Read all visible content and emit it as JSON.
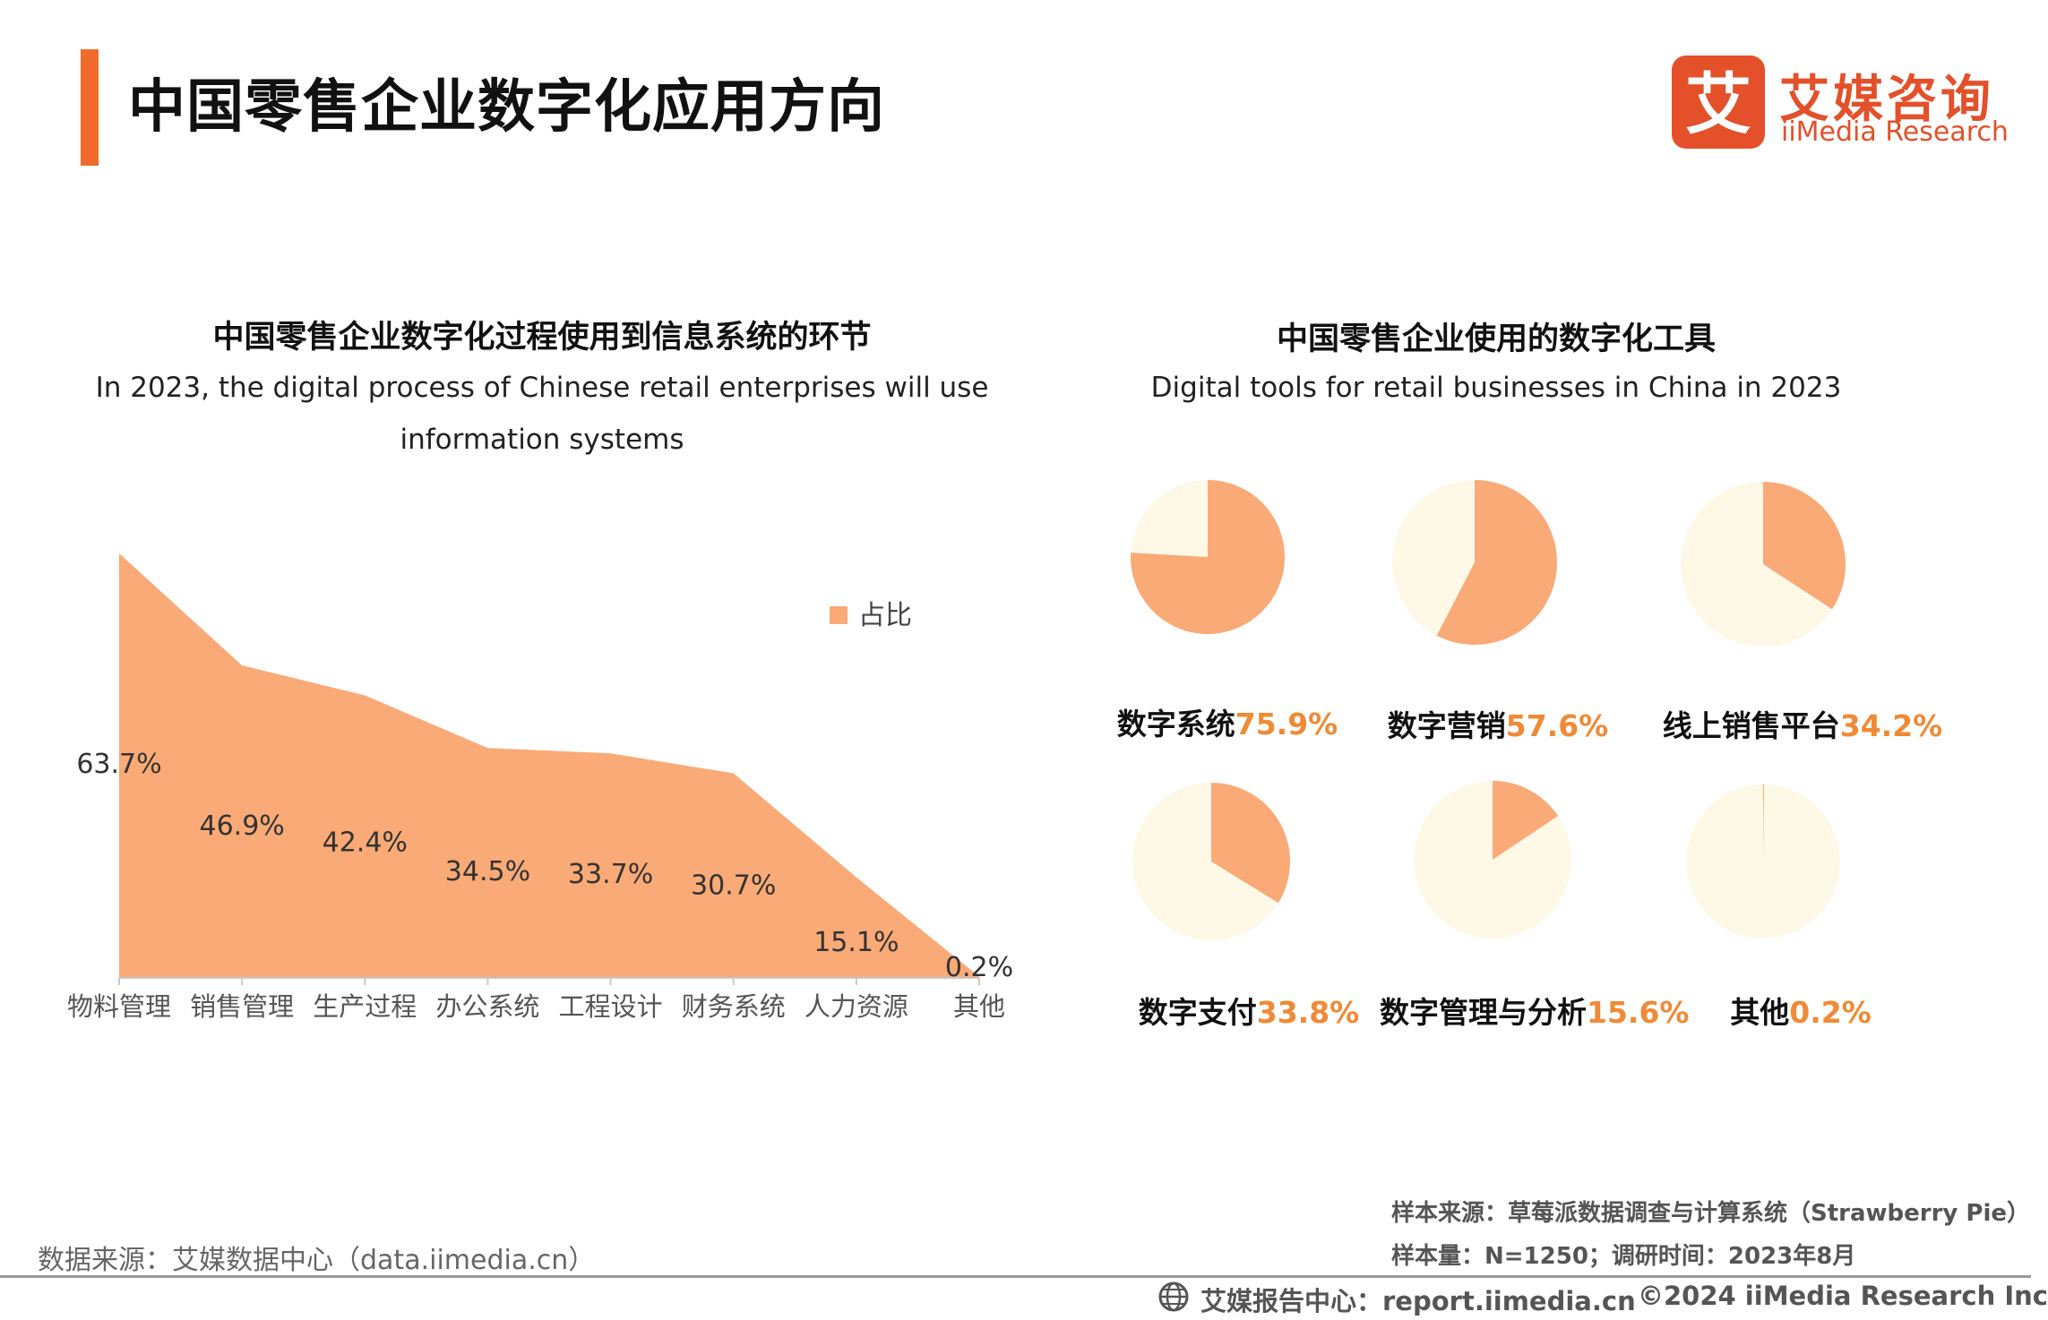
{
  "header": {
    "title": "中国零售企业数字化应用方向",
    "logo_cn": "艾媒咨询",
    "logo_en": "iiMedia Research",
    "logo_mark_char": "艾"
  },
  "left_chart": {
    "title_cn": "中国零售企业数字化过程使用到信息系统的环节",
    "subtitle_line1": "In 2023, the digital process of Chinese retail enterprises will use",
    "subtitle_line2": "information systems"
  },
  "right_chart": {
    "title_cn": "中国零售企业使用的数字化工具",
    "subtitle": "Digital tools for retail businesses in China in 2023"
  },
  "chart_data": [
    {
      "type": "area",
      "categories": [
        "物料管理",
        "销售管理",
        "生产过程",
        "办公系统",
        "工程设计",
        "财务系统",
        "人力资源",
        "其他"
      ],
      "series": [
        {
          "name": "占比",
          "values": [
            63.7,
            46.9,
            42.4,
            34.5,
            33.7,
            30.7,
            15.1,
            0.2
          ]
        }
      ],
      "data_labels": [
        "63.7%",
        "46.9%",
        "42.4%",
        "34.5%",
        "33.7%",
        "30.7%",
        "15.1%",
        "0.2%"
      ],
      "ylim": [
        0,
        63.7
      ],
      "legend": "top-right",
      "grid": false,
      "color": "#f9aa76"
    },
    {
      "type": "pie",
      "items": [
        {
          "label": "数字系统",
          "value": 75.9,
          "pct_label": "75.9%"
        },
        {
          "label": "数字营销",
          "value": 57.6,
          "pct_label": "57.6%"
        },
        {
          "label": "线上销售平台",
          "value": 34.2,
          "pct_label": "34.2%"
        },
        {
          "label": "数字支付",
          "value": 33.8,
          "pct_label": "33.8%"
        },
        {
          "label": "数字管理与分析",
          "value": 15.6,
          "pct_label": "15.6%"
        },
        {
          "label": "其他",
          "value": 0.2,
          "pct_label": "0.2%"
        }
      ],
      "slice_color": "#f9aa76",
      "rest_color": "#fef8e7"
    }
  ],
  "footer": {
    "sample_source": "样本来源：草莓派数据调查与计算系统（Strawberry Pie）",
    "sample_size": "样本量：N=1250；调研时间：2023年8月",
    "data_source": "数据来源：艾媒数据中心（data.iimedia.cn）",
    "report_center": "艾媒报告中心：report.iimedia.cn",
    "copyright": "©2024  iiMedia Research  Inc"
  }
}
